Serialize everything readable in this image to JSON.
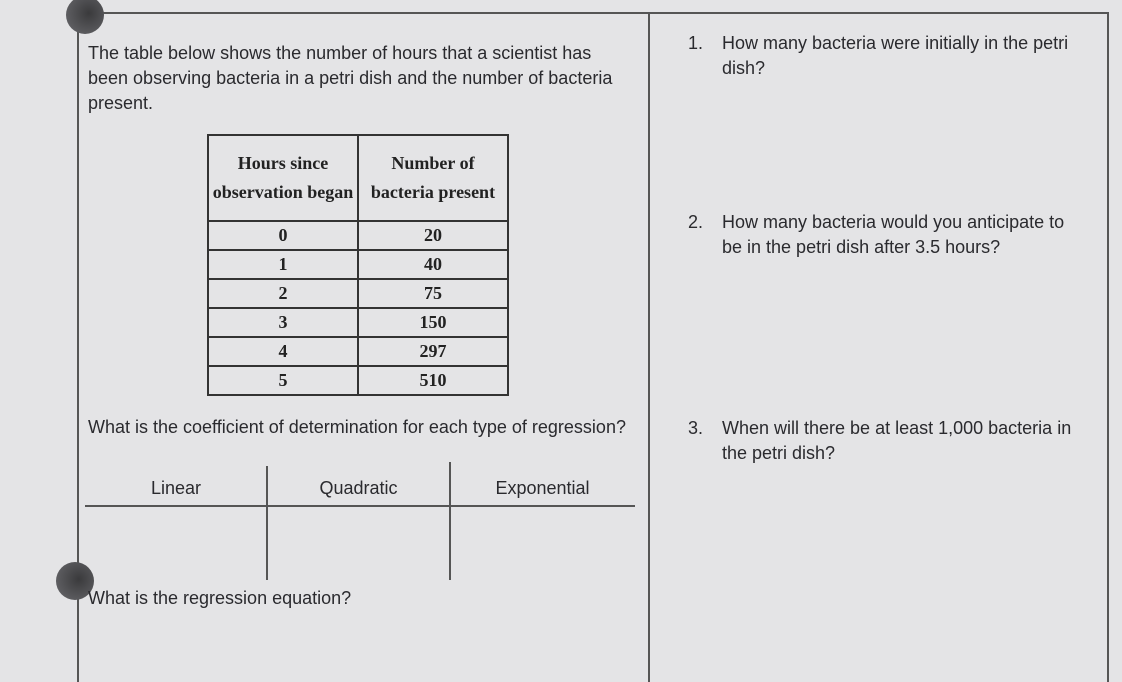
{
  "intro": "The table below shows the number of hours that a scientist has been observing bacteria in a petri dish and the number of bacteria present.",
  "table": {
    "headers": [
      "Hours since observation began",
      "Number of bacteria present"
    ],
    "rows": [
      [
        "0",
        "20"
      ],
      [
        "1",
        "40"
      ],
      [
        "2",
        "75"
      ],
      [
        "3",
        "150"
      ],
      [
        "4",
        "297"
      ],
      [
        "5",
        "510"
      ]
    ]
  },
  "coefficient_question": "What is the coefficient of determination for each type of regression?",
  "regression_table": {
    "headers": [
      "Linear",
      "Quadratic",
      "Exponential"
    ]
  },
  "equation_question": "What is the regression equation?",
  "questions": [
    {
      "number": "1.",
      "text": "How many bacteria were initially in the petri dish?"
    },
    {
      "number": "2.",
      "text": "How many bacteria would you anticipate to be in the petri dish after 3.5 hours?"
    },
    {
      "number": "3.",
      "text": "When will there be at least 1,000 bacteria in the petri dish?"
    }
  ]
}
